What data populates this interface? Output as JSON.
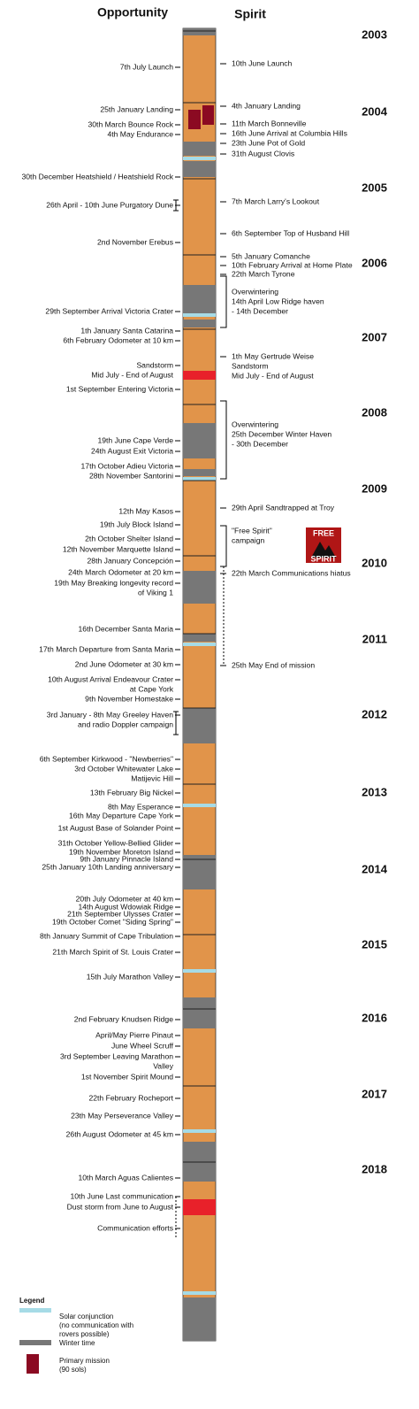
{
  "header": {
    "left": "Opportunity",
    "right": "Spirit"
  },
  "years": [
    "2003",
    "2004",
    "2005",
    "2006",
    "2007",
    "2008",
    "2009",
    "2010",
    "2011",
    "2012",
    "2013",
    "2014",
    "2015",
    "2016",
    "2017",
    "2018"
  ],
  "opportunity_events": [
    {
      "lines": [
        "7th July Launch"
      ]
    },
    {
      "lines": [
        "25th January  Landing"
      ]
    },
    {
      "lines": [
        "30th March  Bounce Rock"
      ]
    },
    {
      "lines": [
        "4th May Endurance"
      ]
    },
    {
      "lines": [
        "30th December Heatshield / Heatshield Rock"
      ]
    },
    {
      "lines": [
        "26th April - 10th June Purgatory Dune"
      ]
    },
    {
      "lines": [
        "2nd November  Erebus"
      ]
    },
    {
      "lines": [
        "29th September Arrival Victoria Crater"
      ]
    },
    {
      "lines": [
        "1th January Santa Catarina"
      ]
    },
    {
      "lines": [
        "6th February Odometer at 10 km"
      ]
    },
    {
      "lines": [
        "Sandstorm",
        "Mid July - End of August"
      ]
    },
    {
      "lines": [
        "1st September Entering Victoria"
      ]
    },
    {
      "lines": [
        "19th June Cape Verde"
      ]
    },
    {
      "lines": [
        "24th August Exit Victoria"
      ]
    },
    {
      "lines": [
        "17th October  Adieu Victoria"
      ]
    },
    {
      "lines": [
        "28th November  Santorini"
      ]
    },
    {
      "lines": [
        "12th  May Kasos"
      ]
    },
    {
      "lines": [
        "19th July Block Island"
      ]
    },
    {
      "lines": [
        "2th October  Shelter Island"
      ]
    },
    {
      "lines": [
        "12th November  Marquette Island"
      ]
    },
    {
      "lines": [
        "28th January  Concepción"
      ]
    },
    {
      "lines": [
        "24th March Odometer at 20 km"
      ]
    },
    {
      "lines": [
        "19th May Breaking longevity record",
        "of Viking 1"
      ]
    },
    {
      "lines": [
        "16th December Santa Maria"
      ]
    },
    {
      "lines": [
        "17th March Departure from Santa Maria"
      ]
    },
    {
      "lines": [
        "2nd June Odometer at 30 km"
      ]
    },
    {
      "lines": [
        "10th August Arrival Endeavour Crater",
        "at Cape York"
      ]
    },
    {
      "lines": [
        "9th November Homestake"
      ]
    },
    {
      "lines": [
        "3rd January - 8th May   Greeley Haven",
        "and radio Doppler campaign"
      ]
    },
    {
      "lines": [
        "6th September   Kirkwood - \"Newberries\""
      ]
    },
    {
      "lines": [
        "3rd October  Whitewater Lake"
      ]
    },
    {
      "lines": [
        "Matijevic Hill"
      ]
    },
    {
      "lines": [
        "13th February Big Nickel"
      ]
    },
    {
      "lines": [
        "8th May Esperance"
      ]
    },
    {
      "lines": [
        "16th May Departure Cape York"
      ]
    },
    {
      "lines": [
        "1st August Base of Solander Point"
      ]
    },
    {
      "lines": [
        "31th October Yellow-Bellied Glider"
      ]
    },
    {
      "lines": [
        "19th November Moreton Island"
      ]
    },
    {
      "lines": [
        "9th January   Pinnacle Island"
      ]
    },
    {
      "lines": [
        "25th January   10th Landing anniversary"
      ]
    },
    {
      "lines": [
        "20th July Odometer at 40 km"
      ]
    },
    {
      "lines": [
        "14th August Wdowiak Ridge"
      ]
    },
    {
      "lines": [
        "21th September Ulysses Crater"
      ]
    },
    {
      "lines": [
        "19th October Comet \"Siding Spring\""
      ]
    },
    {
      "lines": [
        "8th January Summit of Cape Tribulation"
      ]
    },
    {
      "lines": [
        "21th March  Spirit of St. Louis Crater"
      ]
    },
    {
      "lines": [
        "15th July  Marathon Valley"
      ]
    },
    {
      "lines": [
        "2nd February  Knudsen Ridge"
      ]
    },
    {
      "lines": [
        "April/May   Pierre Pinaut"
      ]
    },
    {
      "lines": [
        "June   Wheel Scruff"
      ]
    },
    {
      "lines": [
        "3rd September  Leaving Marathon",
        "Valley"
      ]
    },
    {
      "lines": [
        "1st November  Spirit Mound"
      ]
    },
    {
      "lines": [
        "22th February  Rocheport"
      ]
    },
    {
      "lines": [
        "23th May Perseverance Valley"
      ]
    },
    {
      "lines": [
        "26th August Odometer at 45 km"
      ]
    },
    {
      "lines": [
        "10th March  Aguas Calientes"
      ]
    },
    {
      "lines": [
        "10th June  Last communication"
      ]
    },
    {
      "lines": [
        "Dust storm from June to August"
      ]
    },
    {
      "lines": [
        "Communication efforts"
      ]
    }
  ],
  "spirit_events": [
    {
      "lines": [
        "10th June  Launch"
      ]
    },
    {
      "lines": [
        "4th January  Landing"
      ]
    },
    {
      "lines": [
        "11th March  Bonneville"
      ]
    },
    {
      "lines": [
        "16th June  Arrival at Columbia Hills"
      ]
    },
    {
      "lines": [
        "23th June Pot of Gold"
      ]
    },
    {
      "lines": [
        "31th August  Clovis"
      ]
    },
    {
      "lines": [
        "7th March  Larry's Lookout"
      ]
    },
    {
      "lines": [
        "6th September  Top of Husband Hill"
      ]
    },
    {
      "lines": [
        "5th January  Comanche"
      ]
    },
    {
      "lines": [
        "10th February  Arrival at Home Plate"
      ]
    },
    {
      "lines": [
        "22th March  Tyrone"
      ]
    },
    {
      "lines": [
        "Overwintering",
        "14th April  Low Ridge haven",
        "- 14th December"
      ]
    },
    {
      "lines": [
        "1th May  Gertrude Weise",
        "Sandstorm",
        "Mid July - End of August"
      ]
    },
    {
      "lines": [
        "Overwintering",
        "25th December  Winter Haven",
        "- 30th December"
      ]
    },
    {
      "lines": [
        "29th April  Sandtrapped at Troy"
      ]
    },
    {
      "lines": [
        "\"Free Spirit\"",
        "campaign"
      ]
    },
    {
      "lines": [
        "22th March  Communications hiatus"
      ]
    },
    {
      "lines": [
        "25th May   End of mission"
      ]
    }
  ],
  "logo": [
    "FREE",
    "SPIRIT"
  ],
  "legend": {
    "title": "Legend",
    "items": [
      {
        "lines": [
          "Solar conjunction",
          "(no communication with",
          "rovers possible)"
        ]
      },
      {
        "lines": [
          "Winter time"
        ]
      },
      {
        "lines": [
          "Primary mission",
          "(90 sols)"
        ]
      }
    ]
  }
}
